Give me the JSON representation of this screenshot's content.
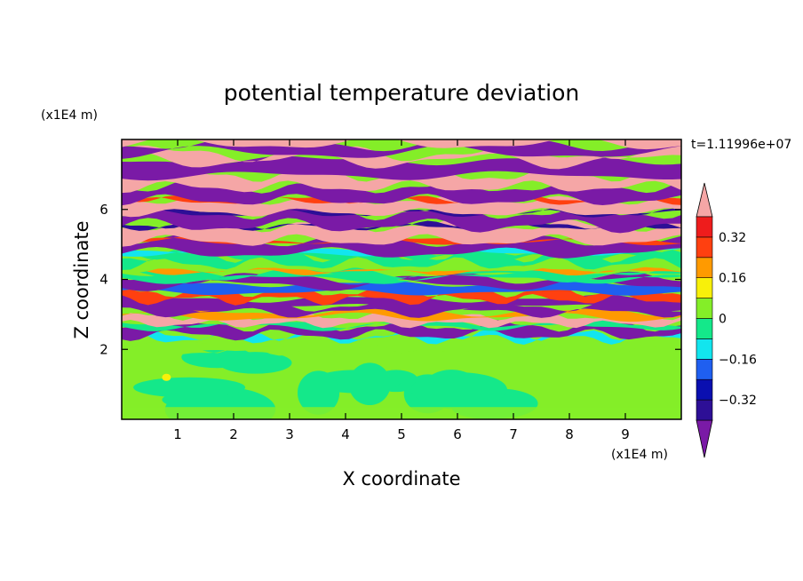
{
  "chart_data": {
    "type": "heatmap",
    "title": "potential temperature deviation",
    "xlabel": "X coordinate",
    "ylabel": "Z coordinate",
    "x_unit": "(x1E4 m)",
    "y_unit": "(x1E4 m)",
    "time_label": "t=1.11996e+07",
    "xlim": [
      0,
      10
    ],
    "ylim": [
      0,
      8
    ],
    "x_ticks": [
      "1",
      "2",
      "3",
      "4",
      "5",
      "6",
      "7",
      "8",
      "9"
    ],
    "y_ticks": [
      "2",
      "4",
      "6"
    ],
    "colorbar": {
      "levels": [
        -0.4,
        -0.32,
        -0.24,
        -0.16,
        -0.08,
        0,
        0.08,
        0.16,
        0.24,
        0.32,
        0.4
      ],
      "tick_labels": [
        "0.32",
        "0.16",
        "0",
        "−0.16",
        "−0.32"
      ],
      "tick_values": [
        0.32,
        0.16,
        0,
        -0.16,
        -0.32
      ],
      "colors": [
        "#7a1aa6",
        "#2d0f96",
        "#0a0fb0",
        "#1f5ff0",
        "#12e5ee",
        "#14e88a",
        "#84ee28",
        "#f8f00a",
        "#ff9a00",
        "#ff4010",
        "#ee1c1c",
        "#f5a6a6"
      ],
      "extend": "both"
    },
    "layers": [
      {
        "z_range": [
          0,
          1.95
        ],
        "values": [
          0,
          0.08
        ],
        "description_colors": [
          "#14e88a",
          "#84ee28"
        ]
      },
      {
        "z_range": [
          1.95,
          4.8
        ],
        "values": [
          -0.4,
          0.4
        ],
        "description_colors": [
          "mixed"
        ]
      },
      {
        "z_range": [
          4.8,
          8.0
        ],
        "values": [
          -0.4,
          0.4
        ],
        "description_colors": [
          "#7a1aa6",
          "#f5a6a6"
        ]
      }
    ]
  }
}
